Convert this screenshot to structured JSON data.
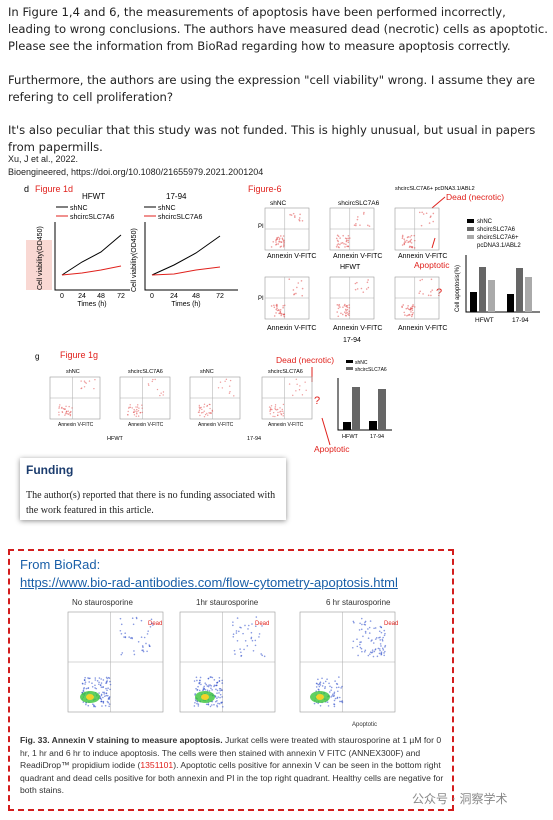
{
  "post": {
    "paragraphs": [
      "In Figure 1,4 and 6, the measurements of apoptosis have been performed incorrectly, leading to wrong conclusions. The authors have measured dead (necrotic) cells as apoptotic. Please see the information from BioRad regarding how to measure apoptosis correctly.",
      "Furthermore, the authors are using the expression \"cell viability\" wrong. I assume they are refering to cell proliferation?",
      "It's also peculiar that this study was not funded. This is highly unusual, but usual in papers from papermills."
    ],
    "citation": [
      "Xu, J et al., 2022.",
      "Bioengineered, https://doi.org/10.1080/21655979.2021.2001204"
    ]
  },
  "figure1": {
    "panel_d": "d",
    "label_d": "Figure 1d",
    "chart_titles": [
      "HFWT",
      "17-94"
    ],
    "legend": [
      "shNC",
      "shcircSLC7A6"
    ],
    "y_label": "Cell viability(OD450)",
    "x_label": "Times (h)",
    "x_ticks": [
      "0",
      "24",
      "48",
      "72"
    ],
    "label_6": "Figure-6",
    "flow_titles": [
      "shNC",
      "shcircSLC7A6",
      "shcircSLC7A6+ pcDNA3.1/ABL2"
    ],
    "axis_x": "Annexin V-FITC",
    "axis_y": "PI",
    "groups": [
      "HFWT",
      "17-94"
    ],
    "bar_legend": [
      "shNC",
      "shcircSLC7A6",
      "shcircSLC7A6+",
      "pcDNA3.1/ABL2"
    ],
    "bar_y_label": "Cell apoptosis(%)",
    "dead": "Dead (necrotic)",
    "apoptotic": "Apoptotic",
    "question": "?"
  },
  "figure1g": {
    "panel": "g",
    "label": "Figure 1g",
    "flow_titles": [
      "shNC",
      "shcircSLC7A6"
    ],
    "axis_x": "Annexin V-FITC",
    "groups": [
      "HFWT",
      "17-94"
    ],
    "bar_legend": [
      "shNC",
      "shcircSLC7A6"
    ],
    "dead": "Dead (necrotic)",
    "question": "?",
    "apoptotic": "Apoptotic"
  },
  "funding": {
    "title": "Funding",
    "text": "The author(s) reported that there is no funding associated with the work featured in this article."
  },
  "biorad": {
    "heading": "From BioRad:",
    "link": "https://www.bio-rad-antibodies.com/flow-cytometry-apoptosis.html",
    "plot_titles": [
      "No staurosporine",
      "1hr staurosporine",
      "6 hr staurosporine"
    ],
    "dead": "Dead",
    "apoptotic": "Apoptotic",
    "caption": {
      "title": "Fig. 33. Annexin V staining to measure apoptosis.",
      "text_before": " Jurkat cells were treated with staurosporine at 1 µM for 0 hr, 1 hr and 6 hr to induce apoptosis. The cells were then stained with annexin V FITC (ANNEX300F) and ReadiDrop™ propidium iodide (",
      "code": "1351101",
      "text_after": "). Apoptotic cells positive for annexin V can be seen in the bottom right quadrant and dead cells positive for both annexin and PI in the top right quadrant. Healthy cells are negative for both stains."
    }
  },
  "watermark": "公众号 · 洞察学术"
}
